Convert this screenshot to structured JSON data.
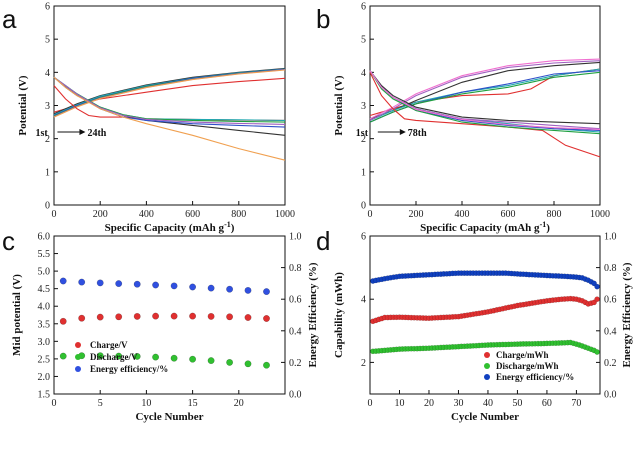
{
  "chart_data": [
    {
      "id": "a",
      "type": "line",
      "panel_label": "a",
      "xlabel": "Specific Capacity (mAh g",
      "xlabel_sup": "-1",
      "xlabel_close": ")",
      "ylabel": "Potential (V)",
      "xlim": [
        0,
        1000
      ],
      "ylim": [
        0,
        6
      ],
      "xticks": [
        "0",
        "200",
        "400",
        "600",
        "800",
        "1000"
      ],
      "yticks": [
        "0",
        "1",
        "2",
        "3",
        "4",
        "5",
        "6"
      ],
      "annotation": {
        "start": "1st",
        "end": "24th",
        "at": [
          240,
          2.2
        ]
      },
      "colors": [
        "#e03030",
        "#333333",
        "#20a8b0",
        "#3050c8",
        "#20a040",
        "#a060c0",
        "#f0a050"
      ],
      "charge_curves": [
        {
          "x": [
            0,
            100,
            200,
            400,
            600,
            800,
            1000
          ],
          "y": [
            2.8,
            3.0,
            3.2,
            3.4,
            3.6,
            3.72,
            3.82
          ]
        },
        {
          "x": [
            0,
            100,
            200,
            400,
            600,
            800,
            1000
          ],
          "y": [
            2.75,
            3.05,
            3.3,
            3.62,
            3.85,
            4.0,
            4.12
          ]
        },
        {
          "x": [
            0,
            100,
            200,
            400,
            600,
            800,
            1000
          ],
          "y": [
            2.72,
            3.02,
            3.28,
            3.6,
            3.83,
            3.99,
            4.1
          ]
        },
        {
          "x": [
            0,
            100,
            200,
            400,
            600,
            800,
            1000
          ],
          "y": [
            2.7,
            3.0,
            3.25,
            3.58,
            3.82,
            3.98,
            4.09
          ]
        },
        {
          "x": [
            0,
            100,
            200,
            400,
            600,
            800,
            1000
          ],
          "y": [
            2.68,
            2.98,
            3.24,
            3.57,
            3.8,
            3.97,
            4.08
          ]
        },
        {
          "x": [
            0,
            100,
            200,
            400,
            600,
            800,
            1000
          ],
          "y": [
            2.66,
            2.97,
            3.22,
            3.55,
            3.79,
            3.96,
            4.08
          ]
        },
        {
          "x": [
            0,
            100,
            200,
            400,
            600,
            800,
            1000
          ],
          "y": [
            2.65,
            2.96,
            3.21,
            3.54,
            3.78,
            3.95,
            4.07
          ]
        }
      ],
      "discharge_curves": [
        {
          "x": [
            0,
            50,
            100,
            150,
            200,
            300,
            400,
            600,
            800,
            1000
          ],
          "y": [
            3.6,
            3.2,
            2.9,
            2.7,
            2.65,
            2.65,
            2.6,
            2.58,
            2.56,
            2.55
          ]
        },
        {
          "x": [
            0,
            50,
            100,
            200,
            300,
            400,
            600,
            800,
            1000
          ],
          "y": [
            3.85,
            3.55,
            3.3,
            2.95,
            2.7,
            2.55,
            2.4,
            2.25,
            2.1
          ]
        },
        {
          "x": [
            0,
            50,
            100,
            200,
            300,
            400,
            600,
            800,
            1000
          ],
          "y": [
            3.85,
            3.6,
            3.35,
            2.95,
            2.72,
            2.6,
            2.58,
            2.57,
            2.55
          ]
        },
        {
          "x": [
            0,
            50,
            100,
            200,
            300,
            400,
            600,
            800,
            1000
          ],
          "y": [
            3.85,
            3.58,
            3.32,
            2.9,
            2.65,
            2.55,
            2.45,
            2.4,
            2.35
          ]
        },
        {
          "x": [
            0,
            50,
            100,
            200,
            300,
            400,
            600,
            800,
            1000
          ],
          "y": [
            3.85,
            3.6,
            3.35,
            2.95,
            2.72,
            2.6,
            2.55,
            2.52,
            2.5
          ]
        },
        {
          "x": [
            0,
            50,
            100,
            200,
            300,
            400,
            600,
            800,
            1000
          ],
          "y": [
            3.85,
            3.6,
            3.34,
            2.93,
            2.7,
            2.58,
            2.5,
            2.46,
            2.43
          ]
        },
        {
          "x": [
            0,
            50,
            100,
            200,
            300,
            400,
            600,
            800,
            1000
          ],
          "y": [
            3.85,
            3.55,
            3.3,
            2.9,
            2.65,
            2.45,
            2.1,
            1.7,
            1.35
          ]
        }
      ]
    },
    {
      "id": "b",
      "type": "line",
      "panel_label": "b",
      "xlabel": "Specific Capacity (mAh g",
      "xlabel_sup": "-1",
      "xlabel_close": ")",
      "ylabel": "Potential (V)",
      "xlim": [
        0,
        1000
      ],
      "ylim": [
        0,
        6
      ],
      "xticks": [
        "0",
        "200",
        "400",
        "600",
        "800",
        "1000"
      ],
      "yticks": [
        "0",
        "1",
        "2",
        "3",
        "4",
        "5",
        "6"
      ],
      "annotation": {
        "start": "1st",
        "end": "78th",
        "at": [
          260,
          2.2
        ]
      },
      "colors": [
        "#e03030",
        "#333333",
        "#20a8b0",
        "#3050c8",
        "#20a040",
        "#a060c0",
        "#f070d0"
      ],
      "charge_curves": [
        {
          "x": [
            0,
            100,
            200,
            400,
            600,
            700,
            800,
            1000
          ],
          "y": [
            2.7,
            2.9,
            3.1,
            3.3,
            3.35,
            3.5,
            3.9,
            4.1
          ]
        },
        {
          "x": [
            0,
            100,
            200,
            400,
            600,
            800,
            1000
          ],
          "y": [
            2.6,
            2.85,
            3.15,
            3.7,
            4.05,
            4.2,
            4.3
          ]
        },
        {
          "x": [
            0,
            100,
            200,
            400,
            600,
            800,
            1000
          ],
          "y": [
            2.55,
            2.85,
            3.1,
            3.4,
            3.6,
            3.9,
            4.1
          ]
        },
        {
          "x": [
            0,
            100,
            200,
            400,
            600,
            800,
            1000
          ],
          "y": [
            2.5,
            2.8,
            3.05,
            3.4,
            3.65,
            3.95,
            4.05
          ]
        },
        {
          "x": [
            0,
            100,
            200,
            400,
            600,
            800,
            1000
          ],
          "y": [
            2.5,
            2.8,
            3.05,
            3.35,
            3.55,
            3.85,
            4.0
          ]
        },
        {
          "x": [
            0,
            100,
            200,
            400,
            600,
            800,
            1000
          ],
          "y": [
            2.55,
            2.9,
            3.3,
            3.85,
            4.15,
            4.28,
            4.35
          ]
        },
        {
          "x": [
            0,
            100,
            200,
            400,
            600,
            800,
            1000
          ],
          "y": [
            2.6,
            2.95,
            3.35,
            3.9,
            4.2,
            4.35,
            4.4
          ]
        }
      ],
      "discharge_curves": [
        {
          "x": [
            0,
            50,
            100,
            150,
            200,
            400,
            600,
            750,
            850,
            1000
          ],
          "y": [
            4.0,
            3.3,
            2.9,
            2.6,
            2.55,
            2.45,
            2.35,
            2.25,
            1.8,
            1.45
          ]
        },
        {
          "x": [
            0,
            50,
            100,
            200,
            400,
            600,
            800,
            1000
          ],
          "y": [
            4.05,
            3.6,
            3.3,
            2.95,
            2.65,
            2.55,
            2.5,
            2.45
          ]
        },
        {
          "x": [
            0,
            50,
            100,
            200,
            400,
            600,
            800,
            1000
          ],
          "y": [
            4.05,
            3.55,
            3.25,
            2.9,
            2.6,
            2.45,
            2.3,
            2.2
          ]
        },
        {
          "x": [
            0,
            50,
            100,
            200,
            400,
            600,
            800,
            1000
          ],
          "y": [
            4.05,
            3.55,
            3.25,
            2.85,
            2.55,
            2.4,
            2.3,
            2.25
          ]
        },
        {
          "x": [
            0,
            50,
            100,
            200,
            400,
            600,
            800,
            1000
          ],
          "y": [
            4.05,
            3.5,
            3.2,
            2.85,
            2.5,
            2.35,
            2.25,
            2.15
          ]
        },
        {
          "x": [
            0,
            50,
            100,
            200,
            400,
            600,
            800,
            1000
          ],
          "y": [
            4.05,
            3.55,
            3.25,
            2.9,
            2.6,
            2.5,
            2.4,
            2.3
          ]
        },
        {
          "x": [
            0,
            50,
            100,
            200,
            400,
            600,
            800,
            1000
          ],
          "y": [
            4.05,
            3.55,
            3.25,
            2.88,
            2.58,
            2.42,
            2.33,
            2.28
          ]
        }
      ]
    },
    {
      "id": "c",
      "type": "scatter",
      "panel_label": "c",
      "xlabel": "Cycle Number",
      "ylabel": "Mid potential (V)",
      "y2label": "Energy Efficiency (%)",
      "xlim": [
        0,
        25
      ],
      "ylim": [
        1.5,
        6.0
      ],
      "y2lim": [
        0,
        1.0
      ],
      "xticks": [
        "0",
        "5",
        "10",
        "15",
        "20"
      ],
      "yticks": [
        "1.5",
        "2.0",
        "2.5",
        "3.0",
        "3.5",
        "4.0",
        "4.5",
        "5.0",
        "5.5",
        "6.0"
      ],
      "y2ticks": [
        "0.0",
        "0.2",
        "0.4",
        "0.6",
        "0.8",
        "1.0"
      ],
      "x": [
        1,
        3,
        5,
        7,
        9,
        11,
        13,
        15,
        17,
        19,
        21,
        23
      ],
      "series": [
        {
          "name": "Charge/V",
          "axis": "left",
          "color": "#e03030",
          "values": [
            3.57,
            3.66,
            3.69,
            3.7,
            3.71,
            3.72,
            3.72,
            3.72,
            3.71,
            3.7,
            3.68,
            3.65
          ]
        },
        {
          "name": "Discharge/V",
          "axis": "left",
          "color": "#30c030",
          "values": [
            2.58,
            2.59,
            2.59,
            2.58,
            2.57,
            2.55,
            2.52,
            2.49,
            2.45,
            2.4,
            2.36,
            2.32
          ]
        },
        {
          "name": "Energy efficiency/%",
          "axis": "right",
          "color": "#3050e0",
          "values": [
            0.715,
            0.708,
            0.703,
            0.699,
            0.695,
            0.69,
            0.684,
            0.677,
            0.67,
            0.663,
            0.656,
            0.648
          ]
        }
      ],
      "legend_position": "bottom-left"
    },
    {
      "id": "d",
      "type": "scatter",
      "panel_label": "d",
      "xlabel": "Cycle Number",
      "ylabel": "Capability (mWh)",
      "y2label": "Energy Efficiency (%)",
      "xlim": [
        0,
        78
      ],
      "ylim": [
        1,
        6
      ],
      "y2lim": [
        0,
        1.0
      ],
      "xticks": [
        "0",
        "10",
        "20",
        "30",
        "40",
        "50",
        "60",
        "70"
      ],
      "yticks": [
        "2",
        "4",
        "6"
      ],
      "y2ticks": [
        "0.0",
        "0.2",
        "0.4",
        "0.6",
        "0.8",
        "1.0"
      ],
      "series": [
        {
          "name": "Charge/mWh",
          "axis": "left",
          "color": "#e03030",
          "keypoints": {
            "x": [
              1,
              5,
              10,
              20,
              30,
              40,
              50,
              60,
              65,
              68,
              70,
              72,
              74,
              76,
              77
            ],
            "y": [
              3.3,
              3.42,
              3.43,
              3.4,
              3.45,
              3.6,
              3.8,
              3.95,
              4.0,
              4.02,
              4.0,
              3.95,
              3.85,
              3.9,
              4.0
            ]
          }
        },
        {
          "name": "Discharge/mWh",
          "axis": "left",
          "color": "#30c030",
          "keypoints": {
            "x": [
              1,
              5,
              10,
              20,
              30,
              40,
              50,
              60,
              66,
              68,
              70,
              72,
              74,
              76,
              77
            ],
            "y": [
              2.35,
              2.38,
              2.42,
              2.45,
              2.5,
              2.55,
              2.58,
              2.6,
              2.62,
              2.63,
              2.58,
              2.52,
              2.45,
              2.38,
              2.33
            ]
          }
        },
        {
          "name": "Energy efficiency/%",
          "axis": "right",
          "color": "#1040c0",
          "keypoints": {
            "x": [
              1,
              5,
              10,
              20,
              30,
              40,
              46,
              50,
              60,
              66,
              70,
              72,
              74,
              76,
              77
            ],
            "y": [
              0.715,
              0.73,
              0.745,
              0.755,
              0.765,
              0.765,
              0.765,
              0.76,
              0.75,
              0.745,
              0.74,
              0.735,
              0.72,
              0.7,
              0.68
            ]
          }
        }
      ],
      "legend_position": "bottom-right"
    }
  ]
}
